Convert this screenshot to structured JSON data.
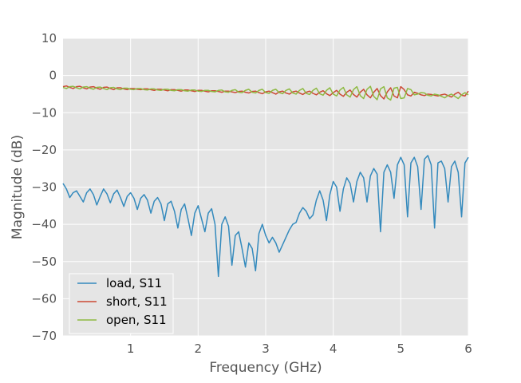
{
  "chart_data": {
    "type": "line",
    "title": "",
    "xlabel": "Frequency (GHz)",
    "ylabel": "Magnitude (dB)",
    "xlim": [
      0.0,
      6.0
    ],
    "ylim": [
      -70,
      10
    ],
    "xticks": [
      1,
      2,
      3,
      4,
      5,
      6
    ],
    "yticks": [
      10,
      0,
      -10,
      -20,
      -30,
      -40,
      -50,
      -60,
      -70
    ],
    "xtick_labels": [
      "1",
      "2",
      "3",
      "4",
      "5",
      "6"
    ],
    "ytick_labels": [
      "10",
      "0",
      "−10",
      "−20",
      "−30",
      "−40",
      "−50",
      "−60",
      "−70"
    ],
    "grid": true,
    "background": "#e5e5e5",
    "legend_position": "lower-left",
    "series": [
      {
        "name": "load, S11",
        "color": "#348abd",
        "x": [
          0.0,
          0.05,
          0.1,
          0.15,
          0.2,
          0.25,
          0.3,
          0.35,
          0.4,
          0.45,
          0.5,
          0.55,
          0.6,
          0.65,
          0.7,
          0.75,
          0.8,
          0.85,
          0.9,
          0.95,
          1.0,
          1.05,
          1.1,
          1.15,
          1.2,
          1.25,
          1.3,
          1.35,
          1.4,
          1.45,
          1.5,
          1.55,
          1.6,
          1.65,
          1.7,
          1.75,
          1.8,
          1.85,
          1.9,
          1.95,
          2.0,
          2.05,
          2.1,
          2.15,
          2.2,
          2.25,
          2.3,
          2.35,
          2.4,
          2.45,
          2.5,
          2.55,
          2.6,
          2.65,
          2.7,
          2.75,
          2.8,
          2.85,
          2.9,
          2.95,
          3.0,
          3.05,
          3.1,
          3.15,
          3.2,
          3.25,
          3.3,
          3.35,
          3.4,
          3.45,
          3.5,
          3.55,
          3.6,
          3.65,
          3.7,
          3.75,
          3.8,
          3.85,
          3.9,
          3.95,
          4.0,
          4.05,
          4.1,
          4.15,
          4.2,
          4.25,
          4.3,
          4.35,
          4.4,
          4.45,
          4.5,
          4.55,
          4.6,
          4.65,
          4.7,
          4.75,
          4.8,
          4.85,
          4.9,
          4.95,
          5.0,
          5.05,
          5.1,
          5.15,
          5.2,
          5.25,
          5.3,
          5.35,
          5.4,
          5.45,
          5.5,
          5.55,
          5.6,
          5.65,
          5.7,
          5.75,
          5.8,
          5.85,
          5.9,
          5.95,
          6.0
        ],
        "y": [
          -29.0,
          -30.5,
          -32.8,
          -31.5,
          -31.0,
          -32.5,
          -34.0,
          -31.5,
          -30.5,
          -32.0,
          -34.8,
          -32.5,
          -30.5,
          -31.8,
          -34.2,
          -31.8,
          -30.8,
          -32.8,
          -35.2,
          -32.5,
          -31.5,
          -33.0,
          -36.0,
          -33.0,
          -32.0,
          -33.5,
          -37.0,
          -33.8,
          -32.8,
          -34.5,
          -39.0,
          -34.5,
          -33.8,
          -36.5,
          -41.0,
          -36.0,
          -34.5,
          -38.5,
          -43.0,
          -37.0,
          -35.0,
          -38.5,
          -42.0,
          -37.0,
          -35.8,
          -40.0,
          -54.0,
          -40.0,
          -38.0,
          -40.5,
          -51.0,
          -43.0,
          -42.0,
          -46.5,
          -51.5,
          -45.0,
          -46.5,
          -52.5,
          -42.5,
          -40.0,
          -43.0,
          -45.0,
          -43.5,
          -45.0,
          -47.5,
          -45.5,
          -43.5,
          -41.5,
          -40.0,
          -39.5,
          -37.0,
          -35.5,
          -36.5,
          -38.5,
          -37.5,
          -33.5,
          -31.0,
          -33.5,
          -39.0,
          -32.0,
          -28.5,
          -30.0,
          -36.5,
          -30.5,
          -27.5,
          -29.0,
          -34.0,
          -28.5,
          -26.0,
          -27.5,
          -34.0,
          -27.0,
          -25.0,
          -26.5,
          -42.0,
          -26.0,
          -24.0,
          -26.0,
          -33.0,
          -24.0,
          -22.0,
          -24.0,
          -38.0,
          -23.5,
          -22.0,
          -24.5,
          -36.0,
          -22.5,
          -21.5,
          -24.0,
          -41.0,
          -23.5,
          -23.0,
          -25.0,
          -34.0,
          -24.5,
          -23.0,
          -26.0,
          -38.0,
          -23.5,
          -22.0
        ]
      },
      {
        "name": "short, S11",
        "color": "#cc4a35",
        "x": [
          0.0,
          0.05,
          0.1,
          0.15,
          0.2,
          0.25,
          0.3,
          0.35,
          0.4,
          0.45,
          0.5,
          0.55,
          0.6,
          0.65,
          0.7,
          0.75,
          0.8,
          0.85,
          0.9,
          0.95,
          1.0,
          1.05,
          1.1,
          1.15,
          1.2,
          1.25,
          1.3,
          1.35,
          1.4,
          1.45,
          1.5,
          1.55,
          1.6,
          1.65,
          1.7,
          1.75,
          1.8,
          1.85,
          1.9,
          1.95,
          2.0,
          2.05,
          2.1,
          2.15,
          2.2,
          2.25,
          2.3,
          2.35,
          2.4,
          2.45,
          2.5,
          2.55,
          2.6,
          2.65,
          2.7,
          2.75,
          2.8,
          2.85,
          2.9,
          2.95,
          3.0,
          3.05,
          3.1,
          3.15,
          3.2,
          3.25,
          3.3,
          3.35,
          3.4,
          3.45,
          3.5,
          3.55,
          3.6,
          3.65,
          3.7,
          3.75,
          3.8,
          3.85,
          3.9,
          3.95,
          4.0,
          4.05,
          4.1,
          4.15,
          4.2,
          4.25,
          4.3,
          4.35,
          4.4,
          4.45,
          4.5,
          4.55,
          4.6,
          4.65,
          4.7,
          4.75,
          4.8,
          4.85,
          4.9,
          4.95,
          5.0,
          5.05,
          5.1,
          5.15,
          5.2,
          5.25,
          5.3,
          5.35,
          5.4,
          5.45,
          5.5,
          5.55,
          5.6,
          5.65,
          5.7,
          5.75,
          5.8,
          5.85,
          5.9,
          5.95,
          6.0
        ],
        "y": [
          -3.0,
          -2.8,
          -3.2,
          -3.5,
          -3.0,
          -2.9,
          -3.3,
          -3.6,
          -3.1,
          -3.0,
          -3.4,
          -3.7,
          -3.2,
          -3.1,
          -3.5,
          -3.8,
          -3.3,
          -3.3,
          -3.6,
          -3.8,
          -3.5,
          -3.5,
          -3.7,
          -3.8,
          -3.6,
          -3.6,
          -3.8,
          -4.0,
          -3.7,
          -3.7,
          -3.9,
          -4.1,
          -3.8,
          -3.8,
          -4.0,
          -4.2,
          -3.9,
          -3.9,
          -4.1,
          -4.3,
          -4.0,
          -4.0,
          -4.2,
          -4.4,
          -4.1,
          -4.1,
          -4.3,
          -4.5,
          -4.2,
          -4.2,
          -4.4,
          -4.6,
          -4.3,
          -4.2,
          -4.5,
          -4.7,
          -4.3,
          -4.2,
          -4.6,
          -4.9,
          -4.4,
          -4.2,
          -4.6,
          -5.0,
          -4.4,
          -4.2,
          -4.7,
          -5.0,
          -4.4,
          -4.2,
          -4.7,
          -5.1,
          -4.5,
          -4.2,
          -4.8,
          -5.2,
          -4.5,
          -4.1,
          -4.9,
          -5.4,
          -4.6,
          -4.0,
          -5.0,
          -5.6,
          -4.5,
          -3.9,
          -5.1,
          -5.8,
          -4.5,
          -3.7,
          -5.2,
          -6.0,
          -4.5,
          -3.5,
          -5.4,
          -6.3,
          -4.4,
          -3.3,
          -5.5,
          -6.0,
          -3.0,
          -3.8,
          -5.2,
          -5.5,
          -4.5,
          -4.8,
          -5.2,
          -5.4,
          -5.0,
          -5.1,
          -5.3,
          -5.5,
          -5.2,
          -5.0,
          -5.4,
          -5.8,
          -5.0,
          -4.5,
          -5.3,
          -5.5,
          -4.2
        ]
      },
      {
        "name": "open, S11",
        "color": "#8eba42",
        "x": [
          0.0,
          0.05,
          0.1,
          0.15,
          0.2,
          0.25,
          0.3,
          0.35,
          0.4,
          0.45,
          0.5,
          0.55,
          0.6,
          0.65,
          0.7,
          0.75,
          0.8,
          0.85,
          0.9,
          0.95,
          1.0,
          1.05,
          1.1,
          1.15,
          1.2,
          1.25,
          1.3,
          1.35,
          1.4,
          1.45,
          1.5,
          1.55,
          1.6,
          1.65,
          1.7,
          1.75,
          1.8,
          1.85,
          1.9,
          1.95,
          2.0,
          2.05,
          2.1,
          2.15,
          2.2,
          2.25,
          2.3,
          2.35,
          2.4,
          2.45,
          2.5,
          2.55,
          2.6,
          2.65,
          2.7,
          2.75,
          2.8,
          2.85,
          2.9,
          2.95,
          3.0,
          3.05,
          3.1,
          3.15,
          3.2,
          3.25,
          3.3,
          3.35,
          3.4,
          3.45,
          3.5,
          3.55,
          3.6,
          3.65,
          3.7,
          3.75,
          3.8,
          3.85,
          3.9,
          3.95,
          4.0,
          4.05,
          4.1,
          4.15,
          4.2,
          4.25,
          4.3,
          4.35,
          4.4,
          4.45,
          4.5,
          4.55,
          4.6,
          4.65,
          4.7,
          4.75,
          4.8,
          4.85,
          4.9,
          4.95,
          5.0,
          5.05,
          5.1,
          5.15,
          5.2,
          5.25,
          5.3,
          5.35,
          5.4,
          5.45,
          5.5,
          5.55,
          5.6,
          5.65,
          5.7,
          5.75,
          5.8,
          5.85,
          5.9,
          5.95,
          6.0
        ],
        "y": [
          -3.2,
          -3.5,
          -3.0,
          -2.9,
          -3.3,
          -3.6,
          -3.1,
          -3.0,
          -3.4,
          -3.7,
          -3.2,
          -3.1,
          -3.5,
          -3.8,
          -3.3,
          -3.2,
          -3.6,
          -3.8,
          -3.4,
          -3.4,
          -3.7,
          -3.8,
          -3.5,
          -3.5,
          -3.8,
          -3.9,
          -3.6,
          -3.6,
          -3.9,
          -4.0,
          -3.7,
          -3.7,
          -4.0,
          -4.1,
          -3.8,
          -3.8,
          -4.1,
          -4.2,
          -3.9,
          -3.9,
          -4.2,
          -4.3,
          -4.0,
          -4.0,
          -4.3,
          -4.4,
          -4.0,
          -3.9,
          -4.4,
          -4.5,
          -4.0,
          -3.8,
          -4.5,
          -4.6,
          -4.0,
          -3.7,
          -4.5,
          -4.7,
          -4.0,
          -3.7,
          -4.6,
          -4.8,
          -4.0,
          -3.7,
          -4.6,
          -4.9,
          -4.0,
          -3.6,
          -4.7,
          -5.0,
          -4.0,
          -3.5,
          -4.8,
          -5.1,
          -4.0,
          -3.4,
          -4.9,
          -5.3,
          -4.0,
          -3.3,
          -5.0,
          -5.5,
          -3.9,
          -3.2,
          -5.2,
          -5.8,
          -3.8,
          -3.0,
          -5.4,
          -6.2,
          -3.7,
          -2.9,
          -5.6,
          -6.5,
          -3.6,
          -3.0,
          -6.0,
          -6.6,
          -3.4,
          -3.2,
          -6.2,
          -6.0,
          -3.5,
          -3.8,
          -5.2,
          -5.0,
          -4.6,
          -4.7,
          -5.3,
          -5.5,
          -5.0,
          -5.2,
          -5.6,
          -6.0,
          -5.4,
          -5.0,
          -5.6,
          -6.2,
          -5.2,
          -4.6,
          -5.2
        ]
      }
    ]
  }
}
